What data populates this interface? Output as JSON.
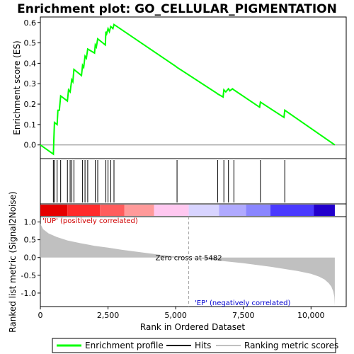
{
  "chart_data": {
    "type": "line",
    "title": "Enrichment plot: GO_CELLULAR_PIGMENTATION",
    "es_panel": {
      "ylabel": "Enrichment score (ES)",
      "ylim": [
        -0.06,
        0.62
      ],
      "yticks": [
        0.0,
        0.1,
        0.2,
        0.3,
        0.4,
        0.5,
        0.6
      ],
      "ytick_labels": [
        "0.0",
        "0.1",
        "0.2",
        "0.3",
        "0.4",
        "0.5",
        "0.6"
      ],
      "series": [
        {
          "name": "Enrichment profile",
          "color": "#00ff00",
          "x": [
            0,
            480,
            500,
            520,
            620,
            650,
            700,
            750,
            1000,
            1040,
            1100,
            1160,
            1200,
            1240,
            1520,
            1560,
            1600,
            1650,
            1700,
            1750,
            2000,
            2030,
            2070,
            2120,
            2400,
            2420,
            2450,
            2500,
            2550,
            2600,
            2680,
            2720,
            5000,
            5050,
            6500,
            6550,
            6750,
            6780,
            6850,
            6950,
            7000,
            7100,
            7150,
            8100,
            8130,
            9000,
            9030,
            10880
          ],
          "y": [
            0.0,
            -0.045,
            0.03,
            0.11,
            0.1,
            0.17,
            0.17,
            0.24,
            0.215,
            0.27,
            0.26,
            0.32,
            0.31,
            0.37,
            0.34,
            0.39,
            0.38,
            0.435,
            0.425,
            0.47,
            0.45,
            0.49,
            0.48,
            0.52,
            0.49,
            0.555,
            0.545,
            0.57,
            0.555,
            0.58,
            0.57,
            0.59,
            0.385,
            0.38,
            0.255,
            0.25,
            0.235,
            0.27,
            0.26,
            0.275,
            0.265,
            0.275,
            0.27,
            0.185,
            0.21,
            0.135,
            0.17,
            0.0
          ]
        }
      ],
      "hits": [
        480,
        520,
        620,
        750,
        1000,
        1100,
        1160,
        1240,
        1560,
        1650,
        1750,
        2030,
        2120,
        2420,
        2500,
        2600,
        2720,
        5050,
        6550,
        6780,
        6950,
        7150,
        8130,
        9030
      ]
    },
    "metric_panel": {
      "ylabel": "Ranked list metric (Signal2Noise)",
      "xlabel": "Rank in Ordered Dataset",
      "ylim": [
        -1.38,
        1.15
      ],
      "yticks": [
        1.0,
        0.5,
        0.0,
        -0.5,
        -1.0
      ],
      "ytick_labels": [
        "1.0",
        "0.5",
        "0.0",
        "-0.5",
        "-1.0"
      ],
      "xlim": [
        0,
        11300
      ],
      "xticks": [
        0,
        2500,
        5000,
        7500,
        10000
      ],
      "xtick_labels": [
        "0",
        "2,500",
        "5,000",
        "7,500",
        "10,000"
      ],
      "metric_x": [
        0,
        100,
        300,
        600,
        1000,
        1500,
        2000,
        2500,
        3000,
        3500,
        4000,
        4500,
        5000,
        5482,
        6000,
        6500,
        7000,
        7500,
        8000,
        8500,
        9000,
        9500,
        10000,
        10300,
        10500,
        10650,
        10750,
        10820,
        10860,
        10880
      ],
      "metric_y": [
        0.95,
        0.8,
        0.68,
        0.58,
        0.48,
        0.4,
        0.33,
        0.28,
        0.22,
        0.17,
        0.12,
        0.07,
        0.03,
        0.0,
        -0.04,
        -0.08,
        -0.12,
        -0.16,
        -0.21,
        -0.26,
        -0.32,
        -0.38,
        -0.46,
        -0.54,
        -0.62,
        -0.72,
        -0.82,
        -0.95,
        -1.1,
        -1.35
      ],
      "zero_cross_rank": 5482,
      "zero_cross_text": "Zero cross at 5482",
      "up_text": "'IUP' (positively correlated)",
      "ep_text": "'EP' (negatively correlated)",
      "up_color": "#d00000",
      "ep_color": "#0000d0",
      "n_genes": 10880
    },
    "color_bar": {
      "segments": [
        {
          "end": 1000,
          "color": "#e60000"
        },
        {
          "end": 2200,
          "color": "#ff2a2a"
        },
        {
          "end": 3100,
          "color": "#ff5c5c"
        },
        {
          "end": 4200,
          "color": "#ff9a9a"
        },
        {
          "end": 5482,
          "color": "#ffc8f0"
        },
        {
          "end": 6600,
          "color": "#d8d4ff"
        },
        {
          "end": 7600,
          "color": "#b0aaff"
        },
        {
          "end": 8500,
          "color": "#8a86ff"
        },
        {
          "end": 10100,
          "color": "#4a3aff"
        },
        {
          "end": 10880,
          "color": "#2200cc"
        }
      ]
    },
    "legend": {
      "items": [
        {
          "label": "Enrichment profile",
          "color": "#00ff00"
        },
        {
          "label": "Hits",
          "color": "#000000"
        },
        {
          "label": "Ranking metric scores",
          "color": "#c0c0c0"
        }
      ]
    }
  }
}
